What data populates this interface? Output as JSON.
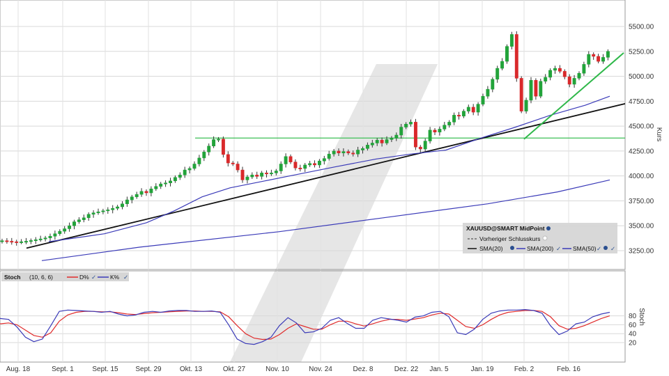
{
  "chart_data": [
    {
      "type": "candlestick",
      "title": "",
      "ylabel": "Kurs",
      "ylim": [
        3150,
        5650
      ],
      "y_ticks": [
        "3250.00",
        "3500.00",
        "3750.00",
        "4000.00",
        "4250.00",
        "4500.00",
        "4750.00",
        "5000.00",
        "5250.00",
        "5500.00"
      ],
      "x_ticks": [
        "Aug. 18",
        "Sept. 1",
        "Sept. 15",
        "Sept. 29",
        "Okt. 13",
        "Okt. 27",
        "Nov. 10",
        "Nov. 24",
        "Dez. 8",
        "Dez. 22",
        "Jan. 5",
        "Jan. 19",
        "Feb. 2",
        "Feb. 16"
      ],
      "grid": true,
      "legend_position": "bottom-right",
      "legend": {
        "instrument": "XAUUSD@SMART MidPoint",
        "prev_close": "Vorheriger Schlusskurs",
        "items": [
          "SMA(20)",
          "SMA(200)",
          "SMA(50)"
        ]
      },
      "colors": {
        "up": "#22a33a",
        "down": "#d9292b",
        "sma20": "#111111",
        "sma50": "#3a3ab8",
        "sma200": "#3a3ab8",
        "trend": "#2fb84a",
        "resistance": "#3cbf55"
      },
      "candle_close": [
        3350,
        3345,
        3340,
        3335,
        3340,
        3345,
        3352,
        3360,
        3368,
        3378,
        3395,
        3420,
        3445,
        3470,
        3500,
        3540,
        3560,
        3580,
        3615,
        3630,
        3640,
        3650,
        3660,
        3675,
        3690,
        3720,
        3760,
        3790,
        3815,
        3845,
        3830,
        3870,
        3895,
        3920,
        3930,
        3950,
        3985,
        4010,
        4060,
        4075,
        4120,
        4180,
        4240,
        4300,
        4365,
        4370,
        4215,
        4130,
        4120,
        4060,
        3960,
        3990,
        4010,
        3995,
        4030,
        4020,
        4030,
        4050,
        4120,
        4195,
        4140,
        4080,
        4075,
        4110,
        4125,
        4110,
        4150,
        4175,
        4220,
        4250,
        4230,
        4245,
        4230,
        4220,
        4260,
        4275,
        4310,
        4330,
        4360,
        4330,
        4365,
        4380,
        4410,
        4490,
        4520,
        4540,
        4290,
        4270,
        4350,
        4460,
        4440,
        4470,
        4510,
        4540,
        4610,
        4600,
        4650,
        4690,
        4640,
        4720,
        4800,
        4870,
        4970,
        5080,
        5150,
        5300,
        5420,
        4980,
        4650,
        4760,
        4960,
        4800,
        4950,
        4990,
        5060,
        5080,
        5050,
        4995,
        4920,
        4980,
        5030,
        5120,
        5220,
        5200,
        5150,
        5190,
        5250
      ]
    },
    {
      "type": "line",
      "title": "",
      "ylabel": "Stoch",
      "ylim": [
        0,
        100
      ],
      "y_ticks": [
        "20",
        "40",
        "60",
        "80"
      ],
      "legend": {
        "name": "Stoch",
        "params": "(10, 6, 6)",
        "items": [
          "D%",
          "K%"
        ]
      },
      "colors": {
        "d": "#e02b2b",
        "k": "#3a3ab8"
      },
      "k_values": [
        74,
        72,
        55,
        32,
        22,
        28,
        58,
        90,
        93,
        92,
        91,
        90,
        88,
        90,
        84,
        80,
        82,
        88,
        90,
        88,
        91,
        92,
        92,
        90,
        90,
        91,
        88,
        60,
        28,
        18,
        16,
        22,
        32,
        58,
        76,
        64,
        42,
        44,
        52,
        70,
        76,
        63,
        52,
        52,
        70,
        76,
        73,
        70,
        66,
        77,
        80,
        88,
        90,
        78,
        42,
        38,
        50,
        72,
        86,
        91,
        93,
        93,
        94,
        92,
        86,
        58,
        38,
        46,
        62,
        66,
        78,
        84,
        88
      ],
      "d_values": [
        62,
        64,
        60,
        48,
        36,
        32,
        42,
        68,
        82,
        88,
        90,
        90,
        89,
        89,
        87,
        84,
        83,
        85,
        87,
        88,
        89,
        90,
        91,
        91,
        90,
        90,
        89,
        78,
        58,
        40,
        30,
        27,
        28,
        38,
        52,
        62,
        56,
        50,
        50,
        60,
        68,
        68,
        62,
        57,
        62,
        68,
        72,
        72,
        70,
        73,
        76,
        82,
        86,
        84,
        70,
        56,
        52,
        60,
        72,
        82,
        88,
        90,
        92,
        92,
        90,
        78,
        58,
        50,
        52,
        58,
        66,
        74,
        80
      ],
      "x_ticks": [
        "Aug. 18",
        "Sept. 1",
        "Sept. 15",
        "Sept. 29",
        "Okt. 13",
        "Okt. 27",
        "Nov. 10",
        "Nov. 24",
        "Dez. 8",
        "Dez. 22",
        "Jan. 5",
        "Jan. 19",
        "Feb. 2",
        "Feb. 16"
      ]
    }
  ]
}
